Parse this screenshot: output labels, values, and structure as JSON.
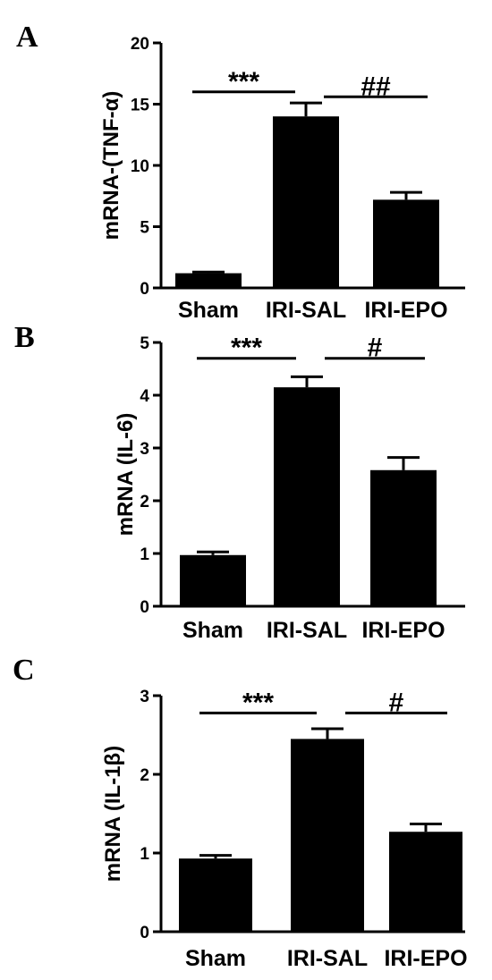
{
  "chart_data": [
    {
      "type": "bar",
      "panel": "A",
      "categories": [
        "Sham",
        "IRI-SAL",
        "IRI-EPO"
      ],
      "values": [
        1.2,
        14.0,
        7.2
      ],
      "errors": [
        0.1,
        1.1,
        0.6
      ],
      "ylabel": "mRNA-(TNF-α)",
      "ylim": [
        0,
        20
      ],
      "yticks": [
        "0",
        "5",
        "10",
        "15",
        "20"
      ],
      "tick_values": [
        0,
        5,
        10,
        15,
        20
      ],
      "significance": [
        {
          "label": "***",
          "from": 0,
          "to": 1,
          "y": 16.0
        },
        {
          "label": "##",
          "from": 1,
          "to": 2,
          "y": 15.6
        }
      ]
    },
    {
      "type": "bar",
      "panel": "B",
      "categories": [
        "Sham",
        "IRI-SAL",
        "IRI-EPO"
      ],
      "values": [
        0.97,
        4.15,
        2.58
      ],
      "errors": [
        0.06,
        0.2,
        0.24
      ],
      "ylabel": "mRNA (IL-6)",
      "ylim": [
        0,
        5
      ],
      "yticks": [
        "0",
        "1",
        "2",
        "3",
        "4",
        "5"
      ],
      "tick_values": [
        0,
        1,
        2,
        3,
        4,
        5
      ],
      "significance": [
        {
          "label": "***",
          "from": 0,
          "to": 1,
          "y": 4.7
        },
        {
          "label": "#",
          "from": 1,
          "to": 2,
          "y": 4.7
        }
      ]
    },
    {
      "type": "bar",
      "panel": "C",
      "categories": [
        "Sham",
        "IRI-SAL",
        "IRI-EPO"
      ],
      "values": [
        0.93,
        2.45,
        1.27
      ],
      "errors": [
        0.04,
        0.13,
        0.1
      ],
      "ylabel": "mRNA (IL-1β)",
      "ylim": [
        0,
        3
      ],
      "yticks": [
        "0",
        "1",
        "2",
        "3"
      ],
      "tick_values": [
        0,
        1,
        2,
        3
      ],
      "significance": [
        {
          "label": "***",
          "from": 0,
          "to": 1,
          "y": 2.78
        },
        {
          "label": "#",
          "from": 1,
          "to": 2,
          "y": 2.78
        }
      ]
    }
  ]
}
